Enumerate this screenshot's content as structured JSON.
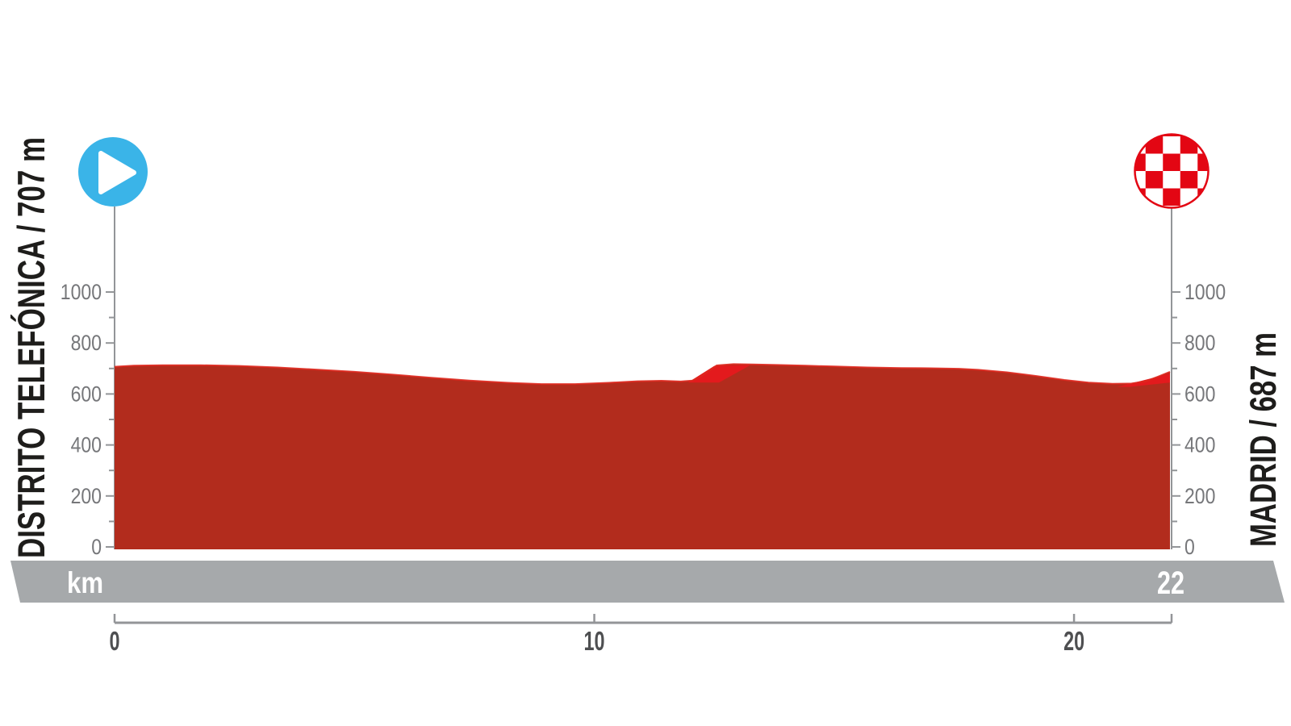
{
  "chart_data": {
    "type": "area",
    "description": "Stage elevation profile",
    "start_label": "DISTRITO TELEFÓNICA / 707 m",
    "finish_label": "MADRID / 687 m",
    "x_unit": "km",
    "xlim": [
      0,
      22
    ],
    "x_ticks": [
      0,
      10,
      20
    ],
    "x_end_tick": 22,
    "ylim": [
      0,
      1100
    ],
    "y_ticks": [
      0,
      200,
      400,
      600,
      800,
      1000
    ],
    "y_minor_ticks": [
      100,
      300,
      500,
      700,
      900
    ],
    "profile_km_elevation": [
      [
        0,
        707
      ],
      [
        0.4,
        711
      ],
      [
        1.0,
        713
      ],
      [
        1.8,
        713
      ],
      [
        2.6,
        710
      ],
      [
        3.4,
        704
      ],
      [
        4.2,
        696
      ],
      [
        5.0,
        687
      ],
      [
        5.8,
        676
      ],
      [
        6.6,
        664
      ],
      [
        7.4,
        653
      ],
      [
        8.2,
        644
      ],
      [
        8.9,
        639
      ],
      [
        9.6,
        639
      ],
      [
        10.3,
        644
      ],
      [
        10.9,
        650
      ],
      [
        11.4,
        652
      ],
      [
        11.8,
        649
      ],
      [
        12.05,
        653
      ],
      [
        12.25,
        672
      ],
      [
        12.55,
        712
      ],
      [
        12.9,
        717
      ],
      [
        13.3,
        716
      ],
      [
        13.8,
        714
      ],
      [
        14.4,
        711
      ],
      [
        15.0,
        708
      ],
      [
        15.7,
        704
      ],
      [
        16.4,
        702
      ],
      [
        17.0,
        701
      ],
      [
        17.6,
        699
      ],
      [
        18.0,
        695
      ],
      [
        18.6,
        685
      ],
      [
        19.2,
        671
      ],
      [
        19.8,
        655
      ],
      [
        20.3,
        645
      ],
      [
        20.8,
        640
      ],
      [
        21.2,
        641
      ],
      [
        21.5,
        650
      ],
      [
        21.75,
        668
      ],
      [
        22,
        687
      ]
    ],
    "steep_segment_polygons_km_elevation": [
      [
        [
          11.95,
          645
        ],
        [
          12.5,
          710
        ],
        [
          13.25,
          713
        ],
        [
          12.6,
          645
        ]
      ],
      [
        [
          20.9,
          628
        ],
        [
          22,
          680
        ],
        [
          22,
          645
        ],
        [
          21.15,
          628
        ]
      ]
    ],
    "colors": {
      "area_dark_red": "#b22c1d",
      "steep_bright_red": "#e31a1d",
      "top_edge_red": "#dd281e",
      "start_marker_blue": "#3ab4e8",
      "finish_checker_red": "#e30613",
      "band_gray": "#a6a9ab",
      "axis_gray": "#939598"
    }
  },
  "footer_band": {
    "unit_label": "km",
    "distance_label": "22"
  },
  "icons": {
    "start": "play-icon",
    "finish": "checkered-flag-icon"
  }
}
